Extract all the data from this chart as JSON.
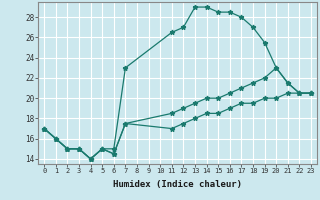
{
  "xlabel": "Humidex (Indice chaleur)",
  "bg_color": "#cce8ee",
  "line_color": "#1a7a6e",
  "grid_color": "#ffffff",
  "xlim": [
    -0.5,
    23.5
  ],
  "ylim": [
    13.5,
    29.5
  ],
  "xticks": [
    0,
    1,
    2,
    3,
    4,
    5,
    6,
    7,
    8,
    9,
    10,
    11,
    12,
    13,
    14,
    15,
    16,
    17,
    18,
    19,
    20,
    21,
    22,
    23
  ],
  "yticks": [
    14,
    16,
    18,
    20,
    22,
    24,
    26,
    28
  ],
  "series": [
    {
      "x": [
        0,
        1,
        2,
        3,
        4,
        5,
        6,
        7,
        11,
        12,
        13,
        14,
        15,
        16,
        17,
        18,
        19,
        20,
        21,
        22,
        23
      ],
      "y": [
        17,
        16,
        15,
        15,
        14,
        15,
        15,
        23,
        26.5,
        27,
        29,
        29,
        28.5,
        28.5,
        28,
        27,
        25.5,
        23,
        21.5,
        20.5,
        20.5
      ]
    },
    {
      "x": [
        0,
        1,
        2,
        3,
        4,
        5,
        6,
        7,
        11,
        12,
        13,
        14,
        15,
        16,
        17,
        18,
        19,
        20,
        21,
        22,
        23
      ],
      "y": [
        17,
        16,
        15,
        15,
        14,
        15,
        14.5,
        17.5,
        18.5,
        19,
        19.5,
        20,
        20,
        20.5,
        21,
        21.5,
        22,
        23,
        21.5,
        20.5,
        20.5
      ]
    },
    {
      "x": [
        0,
        1,
        2,
        3,
        4,
        5,
        6,
        7,
        11,
        12,
        13,
        14,
        15,
        16,
        17,
        18,
        19,
        20,
        21,
        22,
        23
      ],
      "y": [
        17,
        16,
        15,
        15,
        14,
        15,
        14.5,
        17.5,
        17,
        17.5,
        18,
        18.5,
        18.5,
        19,
        19.5,
        19.5,
        20,
        20,
        20.5,
        20.5,
        20.5
      ]
    }
  ]
}
